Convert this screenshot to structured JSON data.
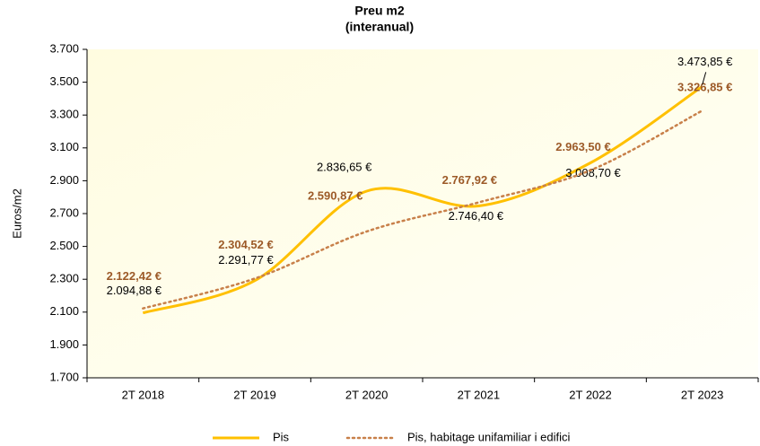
{
  "chart_data": {
    "type": "line",
    "title": "Preu m2",
    "subtitle": "(interanual)",
    "y_label": "Euros/m2",
    "categories": [
      "2T 2018",
      "2T 2019",
      "2T 2020",
      "2T 2021",
      "2T 2022",
      "2T 2023"
    ],
    "series": [
      {
        "name": "Pis",
        "color": "#FFC000",
        "style": "solid",
        "values": [
          2094.88,
          2291.77,
          2836.65,
          2746.4,
          3008.7,
          3473.85
        ],
        "value_labels": [
          "2.094,88 €",
          "2.291,77 €",
          "2.836,65 €",
          "2.746,40 €",
          "3.008,70 €",
          "3.473,85 €"
        ]
      },
      {
        "name": "Pis, habitage unifamiliar i edifici",
        "color": "#C8804A",
        "style": "dotted",
        "values": [
          2122.42,
          2304.52,
          2590.87,
          2767.92,
          2963.5,
          3326.85
        ],
        "value_labels": [
          "2.122,42 €",
          "2.304,52 €",
          "2.590,87 €",
          "2.767,92 €",
          "2.963,50 €",
          "3.326,85 €"
        ]
      }
    ],
    "ylim": [
      1700,
      3700
    ],
    "yticks": [
      {
        "value": 1700,
        "label": "1.700"
      },
      {
        "value": 1900,
        "label": "1.900"
      },
      {
        "value": 2100,
        "label": "2.100"
      },
      {
        "value": 2300,
        "label": "2.300"
      },
      {
        "value": 2500,
        "label": "2.500"
      },
      {
        "value": 2700,
        "label": "2.700"
      },
      {
        "value": 2900,
        "label": "2.900"
      },
      {
        "value": 3100,
        "label": "3.100"
      },
      {
        "value": 3300,
        "label": "3.300"
      },
      {
        "value": 3500,
        "label": "3.500"
      },
      {
        "value": 3700,
        "label": "3.700"
      }
    ],
    "grid": false,
    "legend": "bottom"
  }
}
